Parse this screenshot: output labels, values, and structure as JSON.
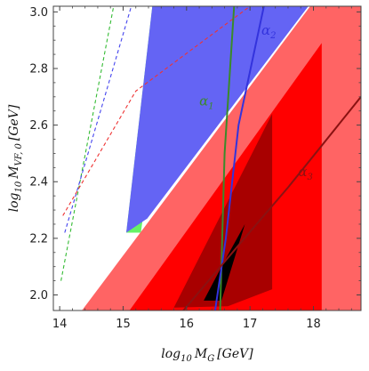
{
  "chart_data": {
    "type": "region-plot",
    "xlabel": "log10 M_G [GeV]",
    "ylabel": "log10 M_VF,0 [GeV]",
    "xlabel_parts": {
      "base": "log",
      "sub": "10",
      "var": "M",
      "varsub": "G",
      "unit": "[GeV]"
    },
    "ylabel_parts": {
      "base": "log",
      "sub": "10",
      "var": "M",
      "varsub": "VF, 0",
      "unit": "[GeV]"
    },
    "xlim": [
      13.9,
      18.75
    ],
    "ylim": [
      1.945,
      3.02
    ],
    "x_ticks": [
      14,
      15,
      16,
      17,
      18
    ],
    "y_ticks": [
      2.0,
      2.2,
      2.4,
      2.6,
      2.8,
      3.0
    ],
    "x_tick_labels": [
      "14",
      "15",
      "16",
      "17",
      "18"
    ],
    "y_tick_labels": [
      "2.0",
      "2.2",
      "2.4",
      "2.6",
      "2.8",
      "3.0"
    ],
    "colors": {
      "green": "#66f266",
      "blue": "#6464f4",
      "light_red": "#ff6464",
      "red": "#ff0000",
      "dark_red": "#a80000",
      "black": "#000000",
      "alpha1_line": "#3a8a2a",
      "alpha2_line": "#3333dd",
      "alpha3_line": "#8a1212",
      "dash_green": "#33bb33",
      "dash_blue": "#4444ee",
      "dash_red": "#ee3333"
    },
    "regions": [
      {
        "id": "green",
        "color": "green",
        "points": [
          [
            15.46,
            3.02
          ],
          [
            15.78,
            3.02
          ],
          [
            15.28,
            2.22
          ],
          [
            15.05,
            2.22
          ]
        ]
      },
      {
        "id": "blue",
        "color": "blue",
        "points": [
          [
            15.46,
            3.02
          ],
          [
            17.92,
            3.02
          ],
          [
            15.38,
            2.27
          ],
          [
            15.05,
            2.22
          ]
        ]
      },
      {
        "id": "light-red",
        "color": "light_red",
        "points": [
          [
            14.35,
            1.945
          ],
          [
            17.95,
            3.02
          ],
          [
            18.75,
            3.02
          ],
          [
            18.75,
            1.945
          ]
        ]
      },
      {
        "id": "red",
        "color": "red",
        "points": [
          [
            15.1,
            1.945
          ],
          [
            18.13,
            2.89
          ],
          [
            18.13,
            1.945
          ]
        ]
      },
      {
        "id": "dark-red",
        "color": "dark_red",
        "points": [
          [
            15.8,
            1.955
          ],
          [
            17.35,
            2.64
          ],
          [
            17.35,
            2.02
          ],
          [
            16.65,
            1.96
          ]
        ]
      },
      {
        "id": "black",
        "color": "black",
        "points": [
          [
            16.27,
            1.98
          ],
          [
            16.55,
            1.98
          ],
          [
            16.92,
            2.25
          ],
          [
            16.6,
            2.12
          ]
        ]
      }
    ],
    "curves": [
      {
        "name": "alpha1",
        "label_base": "α",
        "label_sub": "1",
        "color": "alpha1_line",
        "points": [
          [
            16.53,
            1.945
          ],
          [
            16.6,
            2.5
          ],
          [
            16.75,
            3.02
          ]
        ],
        "label_at": [
          16.2,
          2.67
        ]
      },
      {
        "name": "alpha2",
        "label_base": "α",
        "label_sub": "2",
        "color": "alpha2_line",
        "points": [
          [
            16.45,
            1.945
          ],
          [
            16.62,
            2.2
          ],
          [
            16.82,
            2.6
          ],
          [
            17.22,
            3.02
          ]
        ],
        "label_at": [
          17.18,
          2.92
        ]
      },
      {
        "name": "alpha3",
        "label_base": "α",
        "label_sub": "3",
        "color": "alpha3_line",
        "points": [
          [
            15.95,
            1.945
          ],
          [
            16.95,
            2.21
          ],
          [
            17.6,
            2.38
          ],
          [
            18.75,
            2.7
          ]
        ],
        "label_at": [
          17.76,
          2.42
        ]
      }
    ],
    "dashed_curves": [
      {
        "id": "dash-green",
        "color": "dash_green",
        "points": [
          [
            14.02,
            2.05
          ],
          [
            14.85,
            3.02
          ]
        ]
      },
      {
        "id": "dash-blue",
        "color": "dash_blue",
        "points": [
          [
            14.08,
            2.22
          ],
          [
            15.13,
            3.02
          ]
        ]
      },
      {
        "id": "dash-red",
        "color": "dash_red",
        "points": [
          [
            14.05,
            2.28
          ],
          [
            15.2,
            2.72
          ],
          [
            17.0,
            3.02
          ]
        ]
      }
    ]
  }
}
